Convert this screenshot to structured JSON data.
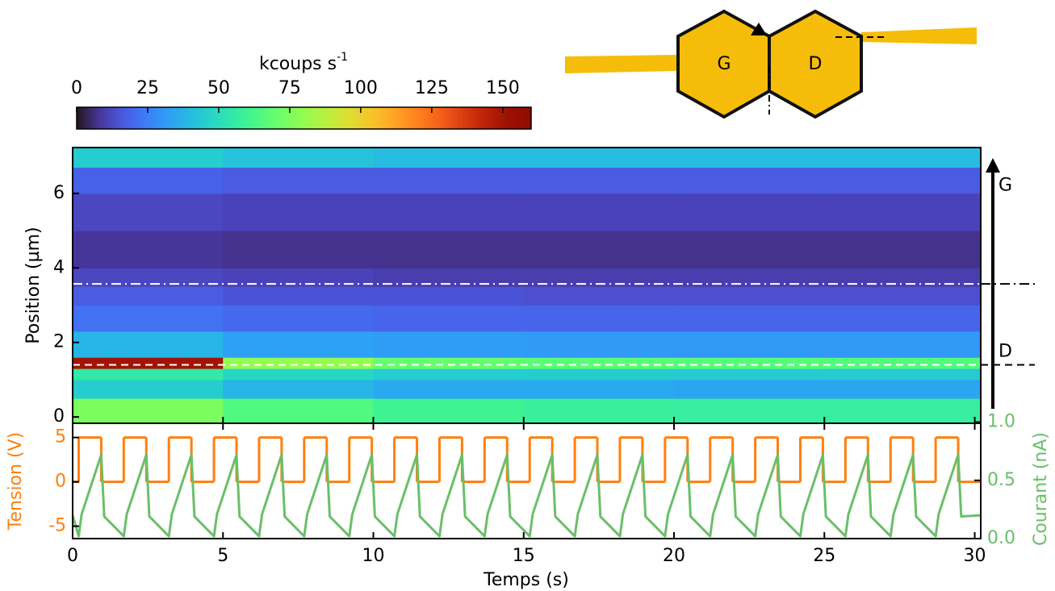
{
  "chart_data": [
    {
      "type": "heatmap",
      "ylabel": "Position (µm)",
      "x_bins": [
        0,
        5,
        10,
        15,
        20,
        25,
        30.2
      ],
      "y_bins": [
        -0.17,
        0.5,
        1.0,
        1.3,
        1.6,
        2.3,
        3.0,
        3.5,
        4.0,
        5.0,
        6.0,
        6.7,
        7.23
      ],
      "z": [
        [
          75,
          65,
          60,
          58,
          57,
          57
        ],
        [
          45,
          38,
          35,
          35,
          34,
          34
        ],
        [
          55,
          48,
          45,
          45,
          44,
          44
        ],
        [
          150,
          80,
          70,
          68,
          67,
          66
        ],
        [
          38,
          33,
          32,
          31,
          31,
          31
        ],
        [
          22,
          20,
          19,
          19,
          19,
          19
        ],
        [
          17,
          15,
          15,
          14,
          14,
          14
        ],
        [
          12,
          11,
          10,
          10,
          10,
          10
        ],
        [
          8,
          7,
          7,
          7,
          7,
          7
        ],
        [
          12,
          11,
          11,
          11,
          11,
          11
        ],
        [
          18,
          17,
          17,
          17,
          17,
          17
        ],
        [
          45,
          42,
          40,
          40,
          40,
          40
        ]
      ],
      "xlim": [
        0,
        30.2
      ],
      "xticks": [
        0,
        5,
        10,
        15,
        20,
        25,
        30
      ],
      "ylim": [
        -0.17,
        7.23
      ],
      "yticks": [
        0,
        2,
        4,
        6
      ],
      "colorbar": {
        "label": "kcoups s",
        "label_exponent": "-1",
        "clim": [
          0,
          160
        ],
        "ticks": [
          0,
          25,
          50,
          75,
          100,
          125,
          150
        ]
      },
      "lines": [
        {
          "y": 3.57,
          "style": "dashdot"
        },
        {
          "y": 1.4,
          "style": "dashed"
        }
      ],
      "side_labels": [
        {
          "y": 6.2,
          "label": "G"
        },
        {
          "y": 1.75,
          "label": "D"
        }
      ]
    },
    {
      "type": "line",
      "xlabel": "Temps (s)",
      "ylabel": "Tension (V)",
      "y2label": "Courant (nA)",
      "xlim": [
        0,
        30.2
      ],
      "xticks": [
        0,
        5,
        10,
        15,
        20,
        25,
        30
      ],
      "ylim": [
        -6.4,
        6.6
      ],
      "yticks": [
        -5,
        0,
        5
      ],
      "y2lim": [
        0,
        0.99
      ],
      "y2ticks": [
        {
          "value": 0,
          "label": "0.0"
        },
        {
          "value": 0.5,
          "label": "0.5"
        },
        {
          "value": 1.0,
          "label": "1.0"
        }
      ],
      "series": [
        {
          "color": "#ff7f0e",
          "step": true,
          "x": [
            0,
            0.2,
            0.95,
            1.7,
            2.45,
            3.2,
            3.95,
            4.7,
            5.45,
            6.2,
            6.95,
            7.7,
            8.45,
            9.2,
            9.95,
            10.7,
            11.45,
            12.2,
            12.95,
            13.7,
            14.45,
            15.2,
            15.95,
            16.7,
            17.45,
            18.2,
            18.95,
            19.7,
            20.45,
            21.2,
            21.95,
            22.7,
            23.45,
            24.2,
            24.95,
            25.7,
            26.45,
            27.2,
            27.95,
            28.7,
            29.45
          ],
          "values": [
            0,
            5,
            0,
            5,
            0,
            5,
            0,
            5,
            0,
            5,
            0,
            5,
            0,
            5,
            0,
            5,
            0,
            5,
            0,
            5,
            0,
            5,
            0,
            5,
            0,
            5,
            0,
            5,
            0,
            5,
            0,
            5,
            0,
            5,
            0,
            5,
            0,
            5,
            0,
            5,
            0
          ]
        },
        {
          "color": "#6abf69",
          "axis": "y2",
          "x": [
            0,
            0.2,
            0.3,
            0.95,
            1.05,
            1.7,
            1.8,
            2.45,
            2.55,
            3.2,
            3.3,
            3.95,
            4.05,
            4.7,
            4.8,
            5.45,
            5.55,
            6.2,
            6.3,
            6.95,
            7.05,
            7.7,
            7.8,
            8.45,
            8.55,
            9.2,
            9.3,
            9.95,
            10.05,
            10.7,
            10.8,
            11.45,
            11.55,
            12.2,
            12.3,
            12.95,
            13.05,
            13.7,
            13.8,
            14.45,
            14.55,
            15.2,
            15.3,
            15.95,
            16.05,
            16.7,
            16.8,
            17.45,
            17.55,
            18.2,
            18.3,
            18.95,
            19.05,
            19.7,
            19.8,
            20.45,
            20.55,
            21.2,
            21.3,
            21.95,
            22.05,
            22.7,
            22.8,
            23.45,
            23.55,
            24.2,
            24.3,
            24.95,
            25.05,
            25.7,
            25.8,
            26.45,
            26.55,
            27.2,
            27.3,
            27.95,
            28.05,
            28.7,
            28.8,
            29.45,
            29.55,
            30.2
          ],
          "values": [
            0.2,
            0.02,
            0.21,
            0.72,
            0.19,
            0.02,
            0.21,
            0.72,
            0.19,
            0.02,
            0.21,
            0.72,
            0.19,
            0.02,
            0.21,
            0.72,
            0.19,
            0.02,
            0.21,
            0.72,
            0.19,
            0.02,
            0.21,
            0.72,
            0.19,
            0.02,
            0.21,
            0.72,
            0.19,
            0.02,
            0.21,
            0.72,
            0.19,
            0.02,
            0.21,
            0.72,
            0.19,
            0.02,
            0.21,
            0.72,
            0.19,
            0.02,
            0.21,
            0.72,
            0.19,
            0.02,
            0.21,
            0.72,
            0.19,
            0.02,
            0.21,
            0.72,
            0.19,
            0.02,
            0.21,
            0.72,
            0.19,
            0.02,
            0.21,
            0.72,
            0.19,
            0.02,
            0.21,
            0.72,
            0.19,
            0.02,
            0.21,
            0.72,
            0.19,
            0.02,
            0.21,
            0.72,
            0.19,
            0.02,
            0.21,
            0.72,
            0.19,
            0.02,
            0.21,
            0.72,
            0.19,
            0.2
          ]
        }
      ]
    }
  ],
  "diagram": {
    "left_label": "G",
    "right_label": "D"
  }
}
